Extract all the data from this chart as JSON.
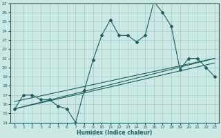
{
  "xlabel": "Humidex (Indice chaleur)",
  "bg_color": "#cce8e4",
  "grid_color": "#99ccc4",
  "line_color": "#1a5f5f",
  "xlim": [
    -0.5,
    23.5
  ],
  "ylim": [
    14,
    27
  ],
  "yticks": [
    14,
    15,
    16,
    17,
    18,
    19,
    20,
    21,
    22,
    23,
    24,
    25,
    26,
    27
  ],
  "xticks": [
    0,
    1,
    2,
    3,
    4,
    5,
    6,
    7,
    8,
    9,
    10,
    11,
    12,
    13,
    14,
    15,
    16,
    17,
    18,
    19,
    20,
    21,
    22,
    23
  ],
  "main_y": [
    15.5,
    17.0,
    17.0,
    16.5,
    16.5,
    15.8,
    15.5,
    14.0,
    17.5,
    20.8,
    23.5,
    25.2,
    23.5,
    23.5,
    22.8,
    23.5,
    27.2,
    26.0,
    24.5,
    19.8,
    21.0,
    21.0,
    20.0,
    19.0
  ],
  "trend1_start": 15.5,
  "trend1_end": 21.0,
  "trend2_start": 16.3,
  "trend2_end": 21.0,
  "trend3_start": 15.5,
  "trend3_end": 20.5
}
